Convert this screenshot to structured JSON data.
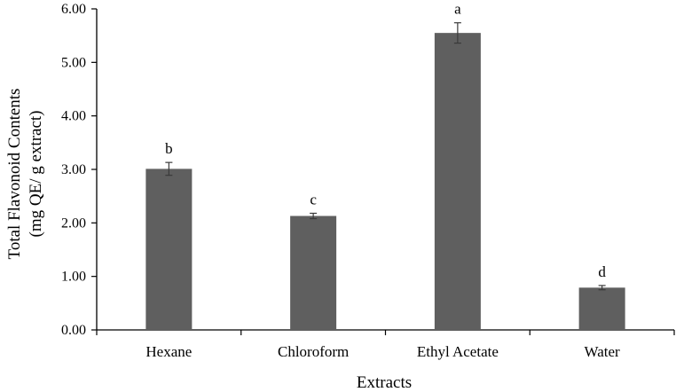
{
  "chart_data": {
    "type": "bar",
    "categories": [
      "Hexane",
      "Chloroform",
      "Ethyl Acetate",
      "Water"
    ],
    "values": [
      3.01,
      2.13,
      5.55,
      0.79
    ],
    "errors": [
      0.12,
      0.05,
      0.19,
      0.04
    ],
    "significance_labels": [
      "b",
      "c",
      "a",
      "d"
    ],
    "ylim": [
      0,
      6
    ],
    "yticks": [
      "0.00",
      "1.00",
      "2.00",
      "3.00",
      "4.00",
      "5.00",
      "6.00"
    ],
    "xlabel": "Extracts",
    "ylabel_line1": "Total Flavonoid Contents",
    "ylabel_line2": "(mg QE/ g extract)",
    "bar_color": "#5f5f5f",
    "axis_color": "#000000",
    "grid": false
  }
}
